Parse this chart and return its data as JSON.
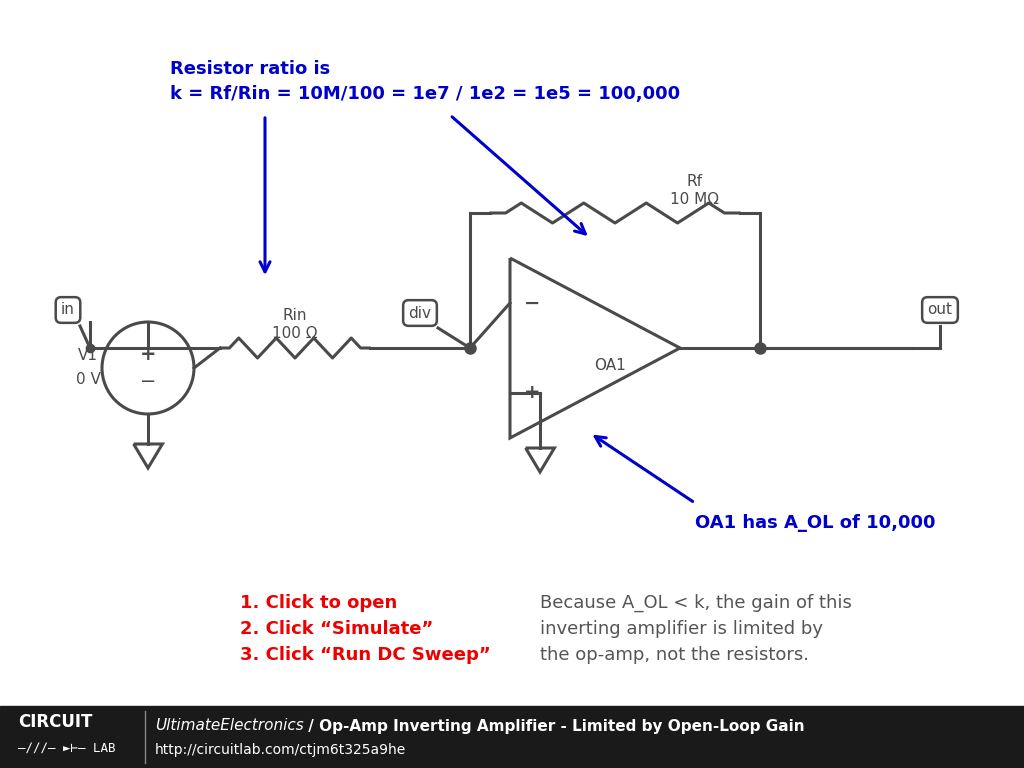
{
  "bg_color": "#ffffff",
  "circuit_color": "#4a4a4a",
  "blue_color": "#0000cc",
  "red_color": "#ee0000",
  "dark_text": "#555555",
  "footer_bg": "#1a1a1a",
  "top_annotation_line1": "Resistor ratio is",
  "top_annotation_line2": "k = Rf/Rin = 10M/100 = 1e7 / 1e2 = 1e5 = 100,000",
  "right_annotation": "OA1 has A_OL of 10,000",
  "red_lines": [
    "1. Click to open",
    "2. Click “Simulate”",
    "3. Click “Run DC Sweep”"
  ],
  "black_text_lines": [
    "Because A_OL < k, the gain of this",
    "inverting amplifier is limited by",
    "the op-amp, not the resistors."
  ],
  "Rf_label": "Rf",
  "Rf_value": "10 MΩ",
  "Rin_label": "Rin",
  "Rin_value": "100 Ω",
  "V1_label": "V1",
  "V1_value": "0 V",
  "OA1_label": "OA1",
  "in_label": "in",
  "out_label": "out",
  "div_label": "div",
  "footer_text_italic": "UltimateElectronics",
  "footer_text_bold": " / Op-Amp Inverting Amplifier - Limited by Open-Loop Gain",
  "footer_url": "http://circuitlab.com/ctjm6t325a9he"
}
